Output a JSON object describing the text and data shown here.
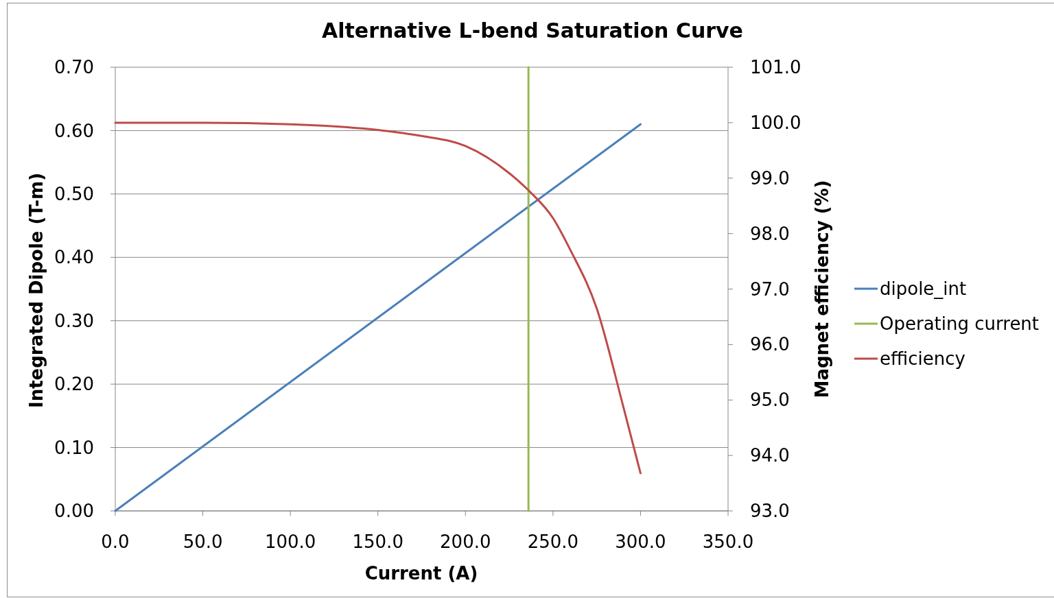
{
  "chart_data": {
    "type": "line",
    "title": "Alternative L-bend Saturation Curve",
    "xlabel": "Current (A)",
    "ylabel": "Integrated Dipole (T-m)",
    "y2label": "Magnet efficiency (%)",
    "xlim": [
      0,
      350
    ],
    "xticks": [
      {
        "value": 0,
        "label": "0.0"
      },
      {
        "value": 50,
        "label": "50.0"
      },
      {
        "value": 100,
        "label": "100.0"
      },
      {
        "value": 150,
        "label": "150.0"
      },
      {
        "value": 200,
        "label": "200.0"
      },
      {
        "value": 250,
        "label": "250.0"
      },
      {
        "value": 300,
        "label": "300.0"
      },
      {
        "value": 350,
        "label": "350.0"
      }
    ],
    "ylim": [
      0,
      0.7
    ],
    "yticks": [
      {
        "value": 0,
        "label": "0.00"
      },
      {
        "value": 0.1,
        "label": "0.10"
      },
      {
        "value": 0.2,
        "label": "0.20"
      },
      {
        "value": 0.3,
        "label": "0.30"
      },
      {
        "value": 0.4,
        "label": "0.40"
      },
      {
        "value": 0.5,
        "label": "0.50"
      },
      {
        "value": 0.6,
        "label": "0.60"
      },
      {
        "value": 0.7,
        "label": "0.70"
      }
    ],
    "y2lim": [
      93,
      101
    ],
    "y2ticks": [
      {
        "value": 93,
        "label": "93.0"
      },
      {
        "value": 94,
        "label": "94.0"
      },
      {
        "value": 95,
        "label": "95.0"
      },
      {
        "value": 96,
        "label": "96.0"
      },
      {
        "value": 97,
        "label": "97.0"
      },
      {
        "value": 98,
        "label": "98.0"
      },
      {
        "value": 99,
        "label": "99.0"
      },
      {
        "value": 100,
        "label": "100.0"
      },
      {
        "value": 101,
        "label": "101.0"
      }
    ],
    "grid": "y",
    "legend": "right",
    "marker": "none",
    "series": [
      {
        "name": "dipole_int",
        "color": "#4a7ebb",
        "x": [
          0,
          300
        ],
        "values": [
          0,
          0.61
        ]
      },
      {
        "name": "Operating current",
        "color": "#98b954",
        "x": [
          236,
          236
        ],
        "values": [
          0,
          0.7
        ]
      },
      {
        "name": "efficiency",
        "color": "#be4b48",
        "axis": "y2",
        "x": [
          0,
          50,
          100,
          150,
          175,
          200,
          225,
          236,
          250,
          260,
          275,
          290,
          300
        ],
        "values": [
          100.0,
          100.0,
          99.97,
          99.87,
          99.76,
          99.58,
          99.09,
          98.78,
          98.28,
          97.7,
          96.65,
          94.9,
          93.68
        ]
      }
    ]
  }
}
